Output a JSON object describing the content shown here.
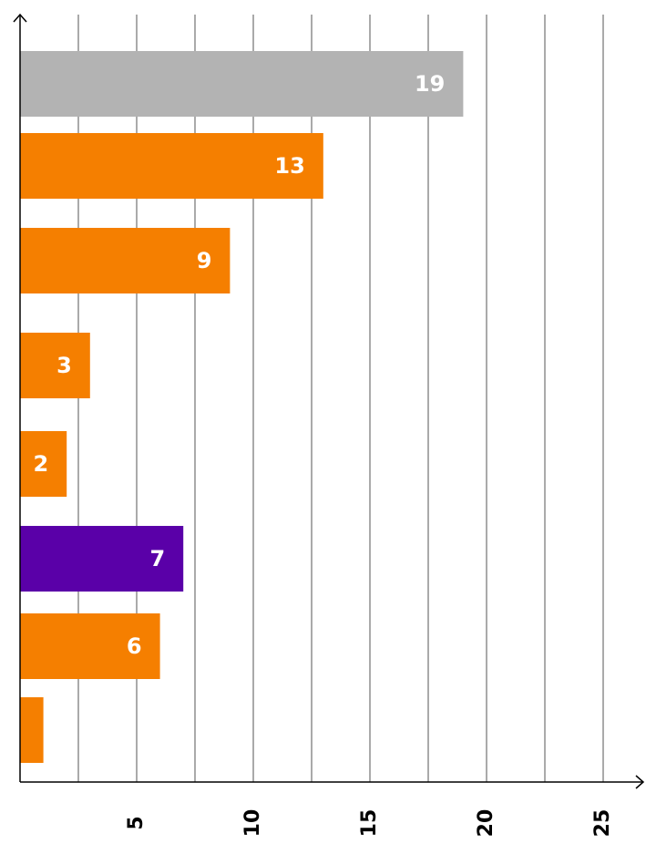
{
  "chart_data": {
    "type": "hbar",
    "categories": [
      null,
      null,
      null,
      null,
      null,
      null,
      null,
      null
    ],
    "values": [
      19,
      13,
      9,
      3,
      2,
      7,
      6,
      1
    ],
    "value_labels": [
      "19",
      "13",
      "9",
      "3",
      "2",
      "7",
      "6",
      null
    ],
    "colors": [
      "#b3b3b3",
      "#f57f00",
      "#f57f00",
      "#f57f00",
      "#f57f00",
      "#5a00a8",
      "#f57f00",
      "#f57f00"
    ],
    "xlim": [
      0,
      26.5
    ],
    "xticks": [
      5,
      10,
      15,
      20,
      25
    ],
    "xminorticks": [
      2.5,
      7.5,
      12.5,
      17.5,
      22.5
    ],
    "grid": true
  }
}
